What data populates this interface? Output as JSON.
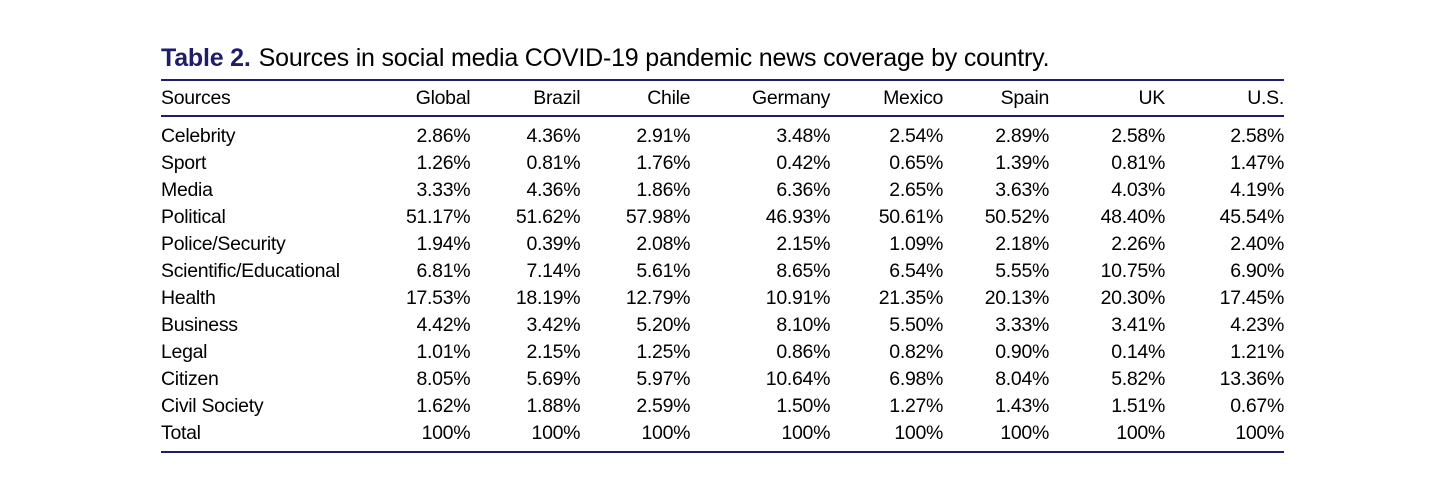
{
  "caption": {
    "label": "Table 2.",
    "text": "Sources in social media COVID-19 pandemic news coverage by country."
  },
  "table": {
    "headers": [
      "Sources",
      "Global",
      "Brazil",
      "Chile",
      "Germany",
      "Mexico",
      "Spain",
      "UK",
      "U.S."
    ],
    "rows": [
      [
        "Celebrity",
        "2.86%",
        "4.36%",
        "2.91%",
        "3.48%",
        "2.54%",
        "2.89%",
        "2.58%",
        "2.58%"
      ],
      [
        "Sport",
        "1.26%",
        "0.81%",
        "1.76%",
        "0.42%",
        "0.65%",
        "1.39%",
        "0.81%",
        "1.47%"
      ],
      [
        "Media",
        "3.33%",
        "4.36%",
        "1.86%",
        "6.36%",
        "2.65%",
        "3.63%",
        "4.03%",
        "4.19%"
      ],
      [
        "Political",
        "51.17%",
        "51.62%",
        "57.98%",
        "46.93%",
        "50.61%",
        "50.52%",
        "48.40%",
        "45.54%"
      ],
      [
        "Police/Security",
        "1.94%",
        "0.39%",
        "2.08%",
        "2.15%",
        "1.09%",
        "2.18%",
        "2.26%",
        "2.40%"
      ],
      [
        "Scientific/Educational",
        "6.81%",
        "7.14%",
        "5.61%",
        "8.65%",
        "6.54%",
        "5.55%",
        "10.75%",
        "6.90%"
      ],
      [
        "Health",
        "17.53%",
        "18.19%",
        "12.79%",
        "10.91%",
        "21.35%",
        "20.13%",
        "20.30%",
        "17.45%"
      ],
      [
        "Business",
        "4.42%",
        "3.42%",
        "5.20%",
        "8.10%",
        "5.50%",
        "3.33%",
        "3.41%",
        "4.23%"
      ],
      [
        "Legal",
        "1.01%",
        "2.15%",
        "1.25%",
        "0.86%",
        "0.82%",
        "0.90%",
        "0.14%",
        "1.21%"
      ],
      [
        "Citizen",
        "8.05%",
        "5.69%",
        "5.97%",
        "10.64%",
        "6.98%",
        "8.04%",
        "5.82%",
        "13.36%"
      ],
      [
        "Civil Society",
        "1.62%",
        "1.88%",
        "2.59%",
        "1.50%",
        "1.27%",
        "1.43%",
        "1.51%",
        "0.67%"
      ],
      [
        "Total",
        "100%",
        "100%",
        "100%",
        "100%",
        "100%",
        "100%",
        "100%",
        "100%"
      ]
    ]
  },
  "colors": {
    "accent": "#1f1d6b"
  }
}
